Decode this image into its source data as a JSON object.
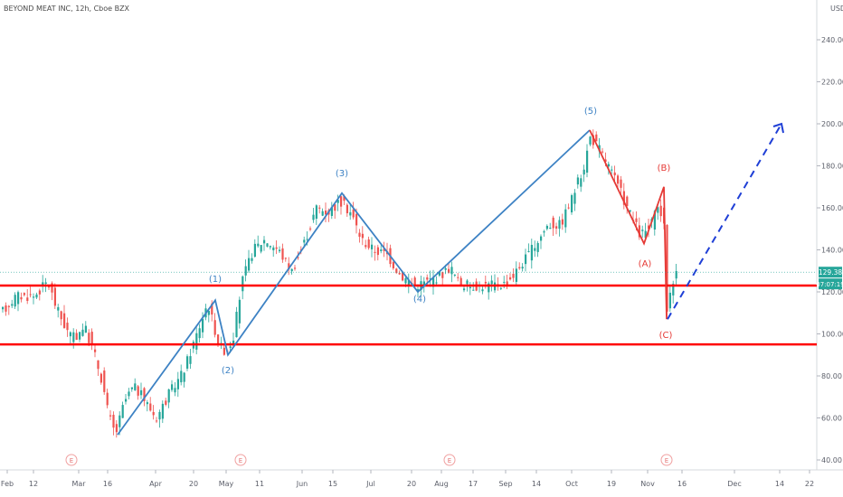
{
  "chart_data": {
    "type": "candlestick",
    "title": "BEYOND MEAT INC, 12h, Cboe BZX",
    "currency": "USD",
    "ylim": [
      35,
      248
    ],
    "y_ticks": [
      "240.00",
      "220.00",
      "200.00",
      "180.00",
      "160.00",
      "140.00",
      "120.00",
      "100.00",
      "80.00",
      "60.00",
      "40.00"
    ],
    "x_ticks": [
      "Feb",
      "12",
      "Mar",
      "16",
      "Apr",
      "20",
      "May",
      "11",
      "Jun",
      "15",
      "Jul",
      "20",
      "Aug",
      "17",
      "Sep",
      "14",
      "Oct",
      "19",
      "Nov",
      "16",
      "Dec",
      "14",
      "22"
    ],
    "last_price": {
      "value": 129.38,
      "label": "129.38"
    },
    "time_label": "07:07:19",
    "support_levels": [
      123.0,
      95.0
    ],
    "wave_labels": [
      {
        "label": "(1)",
        "x": "Apr 28",
        "y": 116
      },
      {
        "label": "(2)",
        "x": "May 2",
        "y": 90
      },
      {
        "label": "(3)",
        "x": "Jun 16",
        "y": 167
      },
      {
        "label": "(4)",
        "x": "Jul 21",
        "y": 120
      },
      {
        "label": "(5)",
        "x": "Oct 10",
        "y": 197
      },
      {
        "label": "(A)",
        "x": "Nov 2",
        "y": 143
      },
      {
        "label": "(B)",
        "x": "Nov 8",
        "y": 170
      },
      {
        "label": "(C)",
        "x": "Nov 9",
        "y": 107
      }
    ],
    "projection": {
      "from_y": 107,
      "to_y": 200,
      "style": "dashed"
    },
    "earnings_marker": "E",
    "colors": {
      "up": "#26a69a",
      "down": "#ef5350",
      "wave_blue": "#3d82c4",
      "wave_red": "#e53935",
      "support": "#ff0000",
      "projection": "#1f3fd6"
    }
  }
}
